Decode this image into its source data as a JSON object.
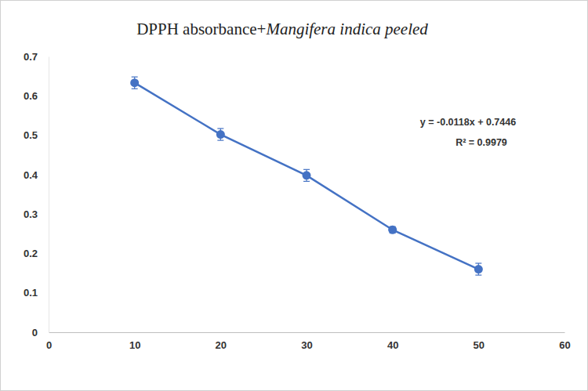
{
  "chart_data": {
    "type": "line",
    "title": "DPPH absorbance+Mangifera indica peeled",
    "x": [
      10,
      20,
      30,
      40,
      50
    ],
    "values": [
      0.633,
      0.502,
      0.398,
      0.26,
      0.16
    ],
    "errors": [
      0.015,
      0.015,
      0.015,
      0.008,
      0.015
    ],
    "color": "#4472c4",
    "marker": "circle",
    "xlim": [
      0,
      60
    ],
    "xticks": [
      0,
      10,
      20,
      30,
      40,
      50,
      60
    ],
    "ylim": [
      0,
      0.7
    ],
    "yticks": [
      0,
      0.1,
      0.2,
      0.3,
      0.4,
      0.5,
      0.6,
      0.7
    ],
    "grid": false,
    "annotations": [
      "y = -0.0118x + 0.7446",
      "R² = 0.9979"
    ]
  }
}
